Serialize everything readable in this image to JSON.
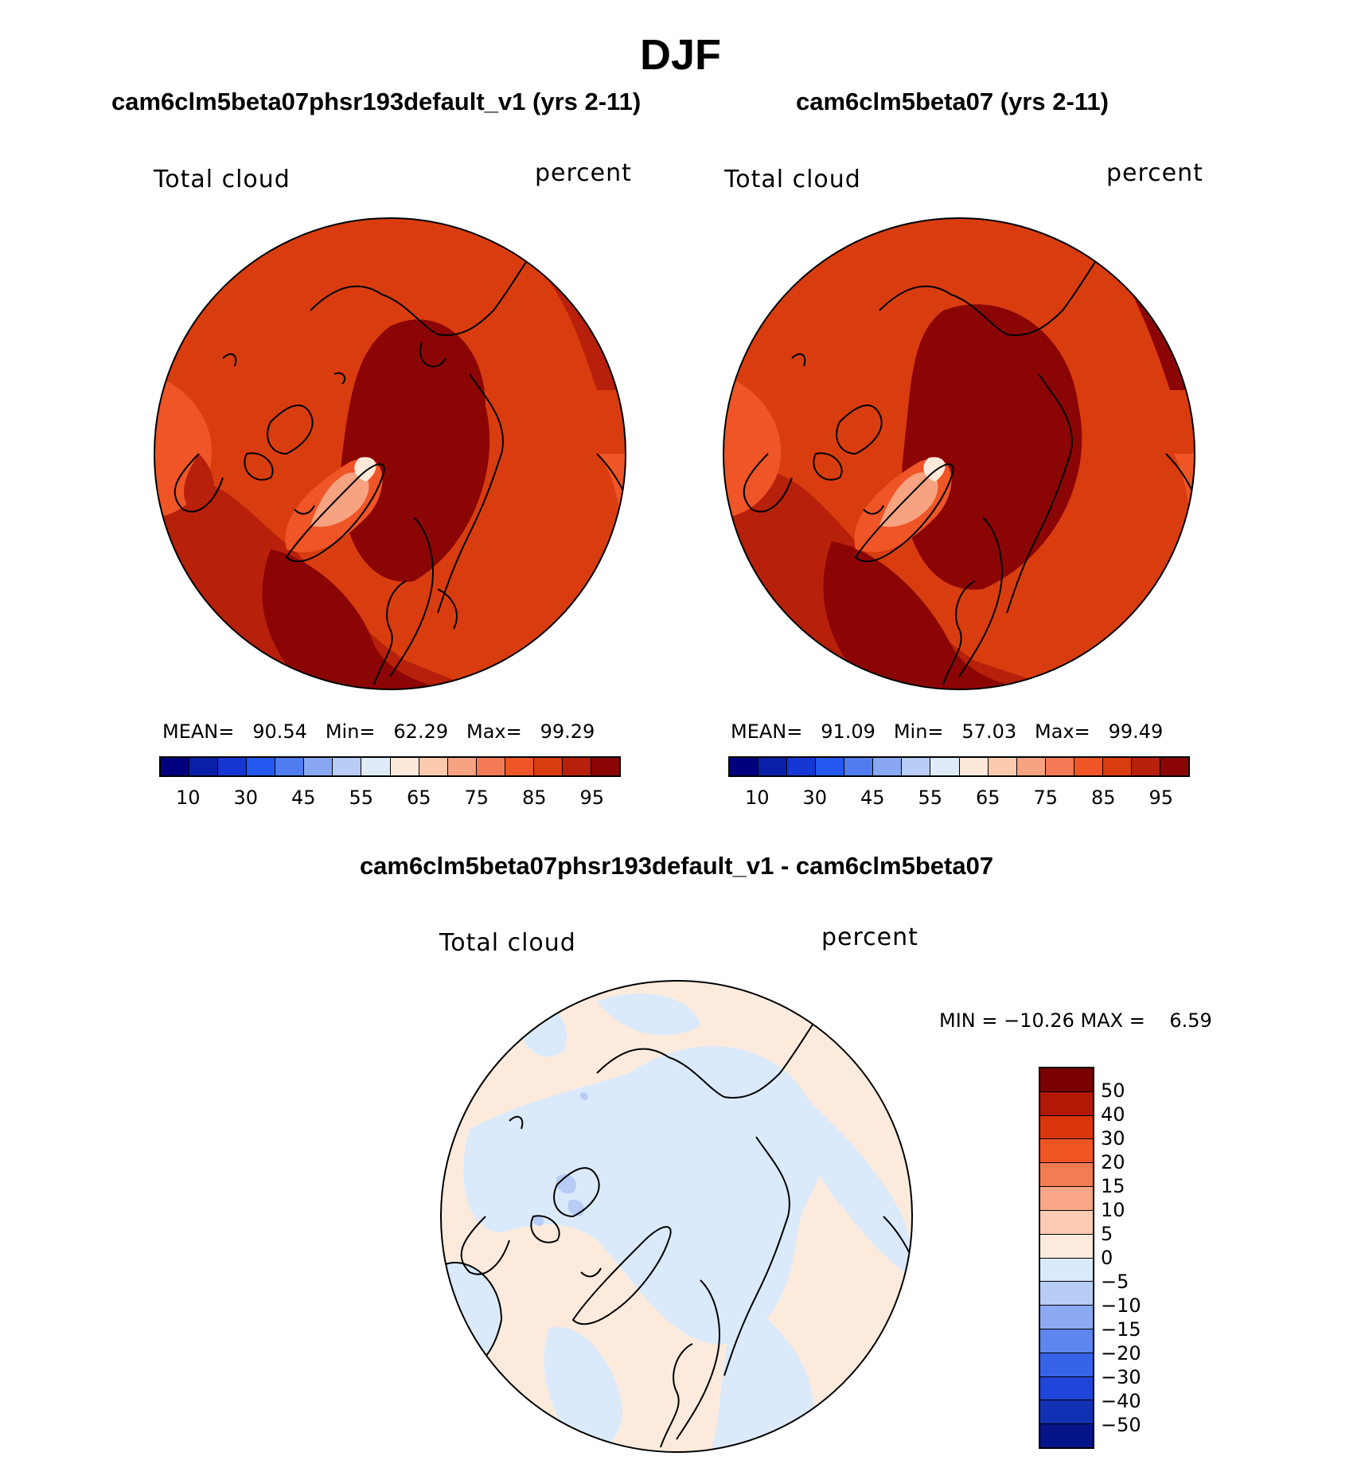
{
  "title": "DJF",
  "panels": [
    {
      "title": "cam6clm5beta07phsr193default_v1 (yrs 2-11)",
      "field_label": "Total cloud",
      "units": "percent",
      "stats": "MEAN=   90.54   Min=   62.29   Max=   99.29"
    },
    {
      "title": "cam6clm5beta07 (yrs 2-11)",
      "field_label": "Total cloud",
      "units": "percent",
      "stats": "MEAN=   91.09   Min=   57.03   Max=   99.49"
    }
  ],
  "abs_colorbar": {
    "colors": [
      "#00007f",
      "#0a1fa8",
      "#1537d3",
      "#2458f0",
      "#4f7df0",
      "#8aa7f3",
      "#b8ccf6",
      "#e0ebfa",
      "#fde9da",
      "#fbc9ae",
      "#f7a281",
      "#f37a55",
      "#ef5526",
      "#d93d0f",
      "#b7200a",
      "#8c0505"
    ],
    "tick_labels": [
      "10",
      "30",
      "45",
      "55",
      "65",
      "75",
      "85",
      "95"
    ]
  },
  "diff_panel": {
    "title": "cam6clm5beta07phsr193default_v1 - cam6clm5beta07",
    "field_label": "Total cloud",
    "units": "percent",
    "minmax": "MIN = −10.26 MAX =    6.59"
  },
  "diff_colorbar": {
    "colors": [
      "#7a0000",
      "#b11805",
      "#d9360c",
      "#f15622",
      "#f37c52",
      "#f9a786",
      "#fbcbb4",
      "#fcebdd",
      "#dbeafb",
      "#b7cdf6",
      "#8baaf2",
      "#5d86ef",
      "#3763e9",
      "#1f45d9",
      "#1230b3",
      "#06148a"
    ],
    "labels": [
      "50",
      "40",
      "30",
      "20",
      "15",
      "10",
      "5",
      "0",
      "−5",
      "−10",
      "−15",
      "−20",
      "−30",
      "−40",
      "−50"
    ]
  }
}
